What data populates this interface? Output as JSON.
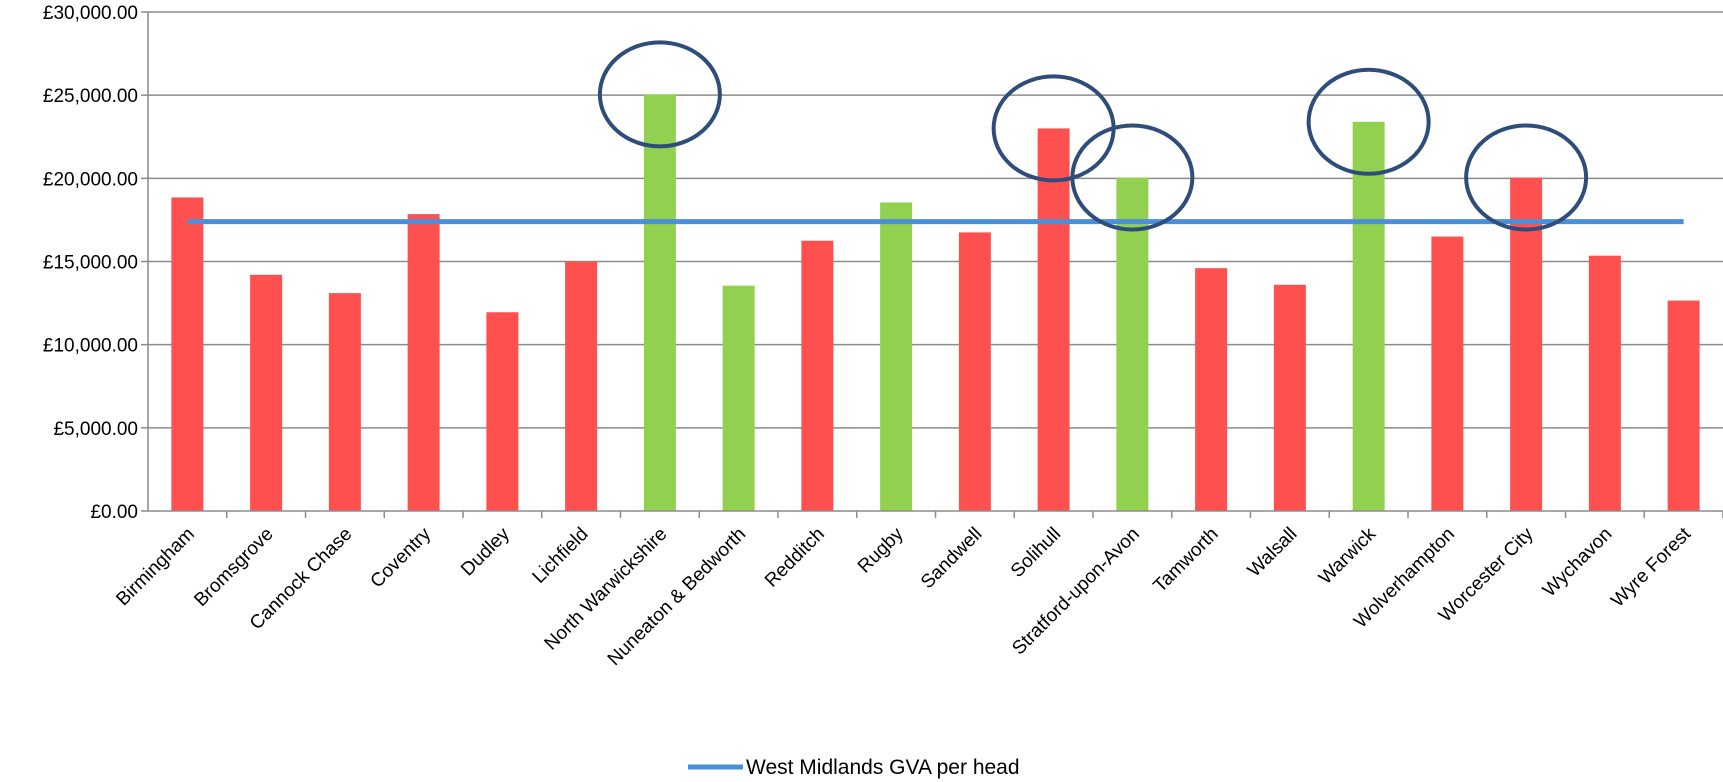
{
  "chart_data": {
    "type": "bar",
    "categories": [
      "Birmingham",
      "Bromsgrove",
      "Cannock Chase",
      "Coventry",
      "Dudley",
      "Lichfield",
      "North Warwickshire",
      "Nuneaton & Bedworth",
      "Redditch",
      "Rugby",
      "Sandwell",
      "Solihull",
      "Stratford-upon-Avon",
      "Tamworth",
      "Walsall",
      "Warwick",
      "Wolverhampton",
      "Worcester City",
      "Wychavon",
      "Wyre Forest"
    ],
    "values": [
      18850,
      14200,
      13100,
      17850,
      11950,
      15000,
      25050,
      13550,
      16250,
      18550,
      16750,
      23000,
      20050,
      14600,
      13600,
      23400,
      16500,
      20050,
      15350,
      12650
    ],
    "bar_colors": [
      "#ff5050",
      "#ff5050",
      "#ff5050",
      "#ff5050",
      "#ff5050",
      "#ff5050",
      "#92d050",
      "#92d050",
      "#ff5050",
      "#92d050",
      "#ff5050",
      "#ff5050",
      "#92d050",
      "#ff5050",
      "#ff5050",
      "#92d050",
      "#ff5050",
      "#ff5050",
      "#ff5050",
      "#ff5050"
    ],
    "reference_line": {
      "name": "West Midlands GVA per head",
      "value": 17400,
      "color": "#4a8fd8"
    },
    "highlighted": [
      "North Warwickshire",
      "Solihull",
      "Stratford-upon-Avon",
      "Warwick",
      "Worcester City"
    ],
    "highlight_color": "#2e4d7b",
    "yticks": [
      "£0.00",
      "£5,000.00",
      "£10,000.00",
      "£15,000.00",
      "£20,000.00",
      "£25,000.00",
      "£30,000.00"
    ],
    "ylim": [
      0,
      30000
    ],
    "grid": true,
    "legend_position": "bottom"
  }
}
